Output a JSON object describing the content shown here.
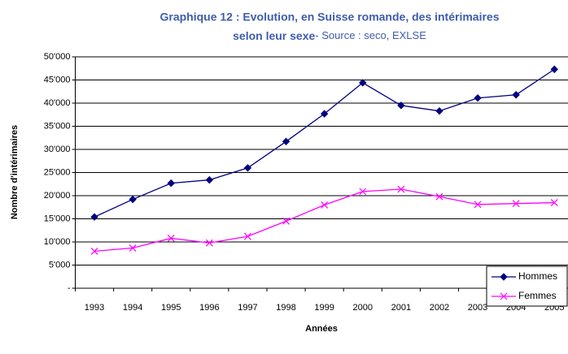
{
  "chart_data": {
    "type": "line",
    "title": "Graphique 12 : Evolution, en Suisse romande, des intérimaires",
    "title_line2": "selon leur sexe",
    "subtitle": "- Source : seco, EXLSE",
    "x_label": "Années",
    "y_label": "Nombre d'intérimaires",
    "categories": [
      "1993",
      "1994",
      "1995",
      "1996",
      "1997",
      "1998",
      "1999",
      "2000",
      "2001",
      "2002",
      "2003",
      "2004",
      "2005"
    ],
    "series": [
      {
        "name": "Hommes",
        "color": "#000080",
        "marker": "diamond",
        "values": [
          15400,
          19200,
          22700,
          23400,
          26000,
          31700,
          37700,
          44400,
          39500,
          38300,
          41100,
          41800,
          47300
        ]
      },
      {
        "name": "Femmes",
        "color": "#ff00ff",
        "marker": "x",
        "values": [
          8000,
          8700,
          10800,
          9800,
          11200,
          14500,
          18000,
          20900,
          21400,
          19800,
          18100,
          18300,
          18500
        ]
      }
    ],
    "ylim": [
      0,
      50000
    ],
    "yticks": [
      {
        "value": 0,
        "label": "-"
      },
      {
        "value": 5000,
        "label": "5'000"
      },
      {
        "value": 10000,
        "label": "10'000"
      },
      {
        "value": 15000,
        "label": "15'000"
      },
      {
        "value": 20000,
        "label": "20'000"
      },
      {
        "value": 25000,
        "label": "25'000"
      },
      {
        "value": 30000,
        "label": "30'000"
      },
      {
        "value": 35000,
        "label": "35'000"
      },
      {
        "value": 40000,
        "label": "40'000"
      },
      {
        "value": 45000,
        "label": "45'000"
      },
      {
        "value": 50000,
        "label": "50'000"
      }
    ],
    "grid": true,
    "legend": "lower right"
  }
}
